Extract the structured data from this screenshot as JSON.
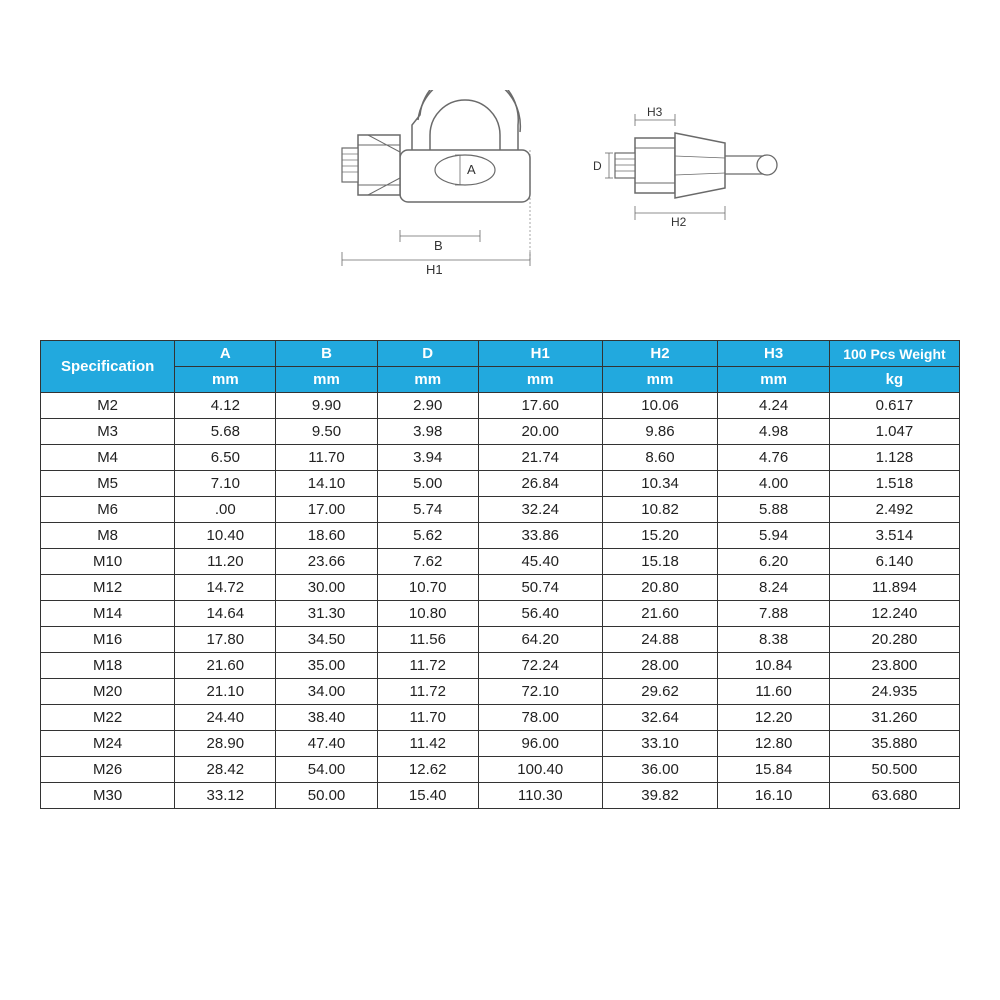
{
  "diagram": {
    "labels": {
      "A": "A",
      "B": "B",
      "H1": "H1",
      "H2": "H2",
      "H3": "H3",
      "D": "D"
    },
    "stroke": "#6a6a6a",
    "fill_light": "#f4f4f4",
    "fill_dark": "#cfcfcf",
    "label_font_size": 13
  },
  "table": {
    "header_bg": "#22a9de",
    "header_fg": "#ffffff",
    "border_color": "#333333",
    "columns": {
      "spec_label": "Specification",
      "dims": [
        "A",
        "B",
        "D",
        "H1",
        "H2",
        "H3"
      ],
      "unit_mm": "mm",
      "weight_label": "100 Pcs Weight",
      "weight_unit": "kg"
    },
    "rows": [
      {
        "spec": "M2",
        "A": "4.12",
        "B": "9.90",
        "D": "2.90",
        "H1": "17.60",
        "H2": "10.06",
        "H3": "4.24",
        "W": "0.617"
      },
      {
        "spec": "M3",
        "A": "5.68",
        "B": "9.50",
        "D": "3.98",
        "H1": "20.00",
        "H2": "9.86",
        "H3": "4.98",
        "W": "1.047"
      },
      {
        "spec": "M4",
        "A": "6.50",
        "B": "11.70",
        "D": "3.94",
        "H1": "21.74",
        "H2": "8.60",
        "H3": "4.76",
        "W": "1.128"
      },
      {
        "spec": "M5",
        "A": "7.10",
        "B": "14.10",
        "D": "5.00",
        "H1": "26.84",
        "H2": "10.34",
        "H3": "4.00",
        "W": "1.518"
      },
      {
        "spec": "M6",
        "A": ".00",
        "B": "17.00",
        "D": "5.74",
        "H1": "32.24",
        "H2": "10.82",
        "H3": "5.88",
        "W": "2.492"
      },
      {
        "spec": "M8",
        "A": "10.40",
        "B": "18.60",
        "D": "5.62",
        "H1": "33.86",
        "H2": "15.20",
        "H3": "5.94",
        "W": "3.514"
      },
      {
        "spec": "M10",
        "A": "11.20",
        "B": "23.66",
        "D": "7.62",
        "H1": "45.40",
        "H2": "15.18",
        "H3": "6.20",
        "W": "6.140"
      },
      {
        "spec": "M12",
        "A": "14.72",
        "B": "30.00",
        "D": "10.70",
        "H1": "50.74",
        "H2": "20.80",
        "H3": "8.24",
        "W": "11.894"
      },
      {
        "spec": "M14",
        "A": "14.64",
        "B": "31.30",
        "D": "10.80",
        "H1": "56.40",
        "H2": "21.60",
        "H3": "7.88",
        "W": "12.240"
      },
      {
        "spec": "M16",
        "A": "17.80",
        "B": "34.50",
        "D": "11.56",
        "H1": "64.20",
        "H2": "24.88",
        "H3": "8.38",
        "W": "20.280"
      },
      {
        "spec": "M18",
        "A": "21.60",
        "B": "35.00",
        "D": "11.72",
        "H1": "72.24",
        "H2": "28.00",
        "H3": "10.84",
        "W": "23.800"
      },
      {
        "spec": "M20",
        "A": "21.10",
        "B": "34.00",
        "D": "11.72",
        "H1": "72.10",
        "H2": "29.62",
        "H3": "11.60",
        "W": "24.935"
      },
      {
        "spec": "M22",
        "A": "24.40",
        "B": "38.40",
        "D": "11.70",
        "H1": "78.00",
        "H2": "32.64",
        "H3": "12.20",
        "W": "31.260"
      },
      {
        "spec": "M24",
        "A": "28.90",
        "B": "47.40",
        "D": "11.42",
        "H1": "96.00",
        "H2": "33.10",
        "H3": "12.80",
        "W": "35.880"
      },
      {
        "spec": "M26",
        "A": "28.42",
        "B": "54.00",
        "D": "12.62",
        "H1": "100.40",
        "H2": "36.00",
        "H3": "15.84",
        "W": "50.500"
      },
      {
        "spec": "M30",
        "A": "33.12",
        "B": "50.00",
        "D": "15.40",
        "H1": "110.30",
        "H2": "39.82",
        "H3": "16.10",
        "W": "63.680"
      }
    ]
  }
}
